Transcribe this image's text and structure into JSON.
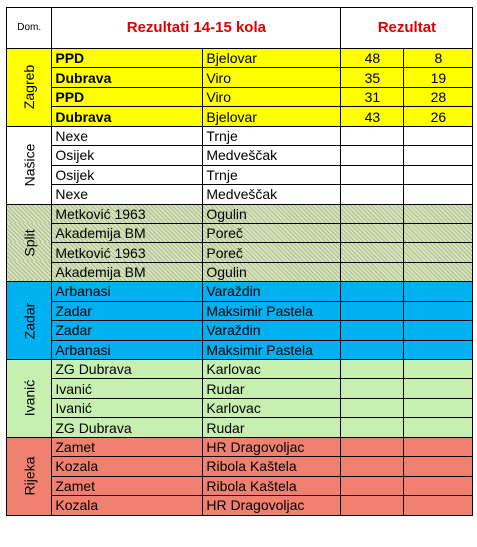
{
  "header": {
    "dom_label": "Dom.",
    "title": "Rezultati  14-15 kola",
    "result_label": "Rezultat"
  },
  "groups": [
    {
      "name": "Zagreb",
      "color": "#ffff00",
      "rows": [
        {
          "home": "PPD",
          "away": "Bjelovar",
          "score_home": "48",
          "score_away": "8"
        },
        {
          "home": "Dubrava",
          "away": "Viro",
          "score_home": "35",
          "score_away": "19"
        },
        {
          "home": "PPD",
          "away": "Viro",
          "score_home": "31",
          "score_away": "28"
        },
        {
          "home": "Dubrava",
          "away": "Bjelovar",
          "score_home": "43",
          "score_away": "26"
        }
      ]
    },
    {
      "name": "Našice",
      "color": "#ffffff",
      "rows": [
        {
          "home": "Nexe",
          "away": "Trnje",
          "score_home": "",
          "score_away": ""
        },
        {
          "home": "Osijek",
          "away": "Medveščak",
          "score_home": "",
          "score_away": ""
        },
        {
          "home": "Osijek",
          "away": "Trnje",
          "score_home": "",
          "score_away": ""
        },
        {
          "home": "Nexe",
          "away": "Medveščak",
          "score_home": "",
          "score_away": ""
        }
      ]
    },
    {
      "name": "Split",
      "color": "#d7e4bc",
      "rows": [
        {
          "home": "Metković 1963",
          "away": "Ogulin",
          "score_home": "",
          "score_away": ""
        },
        {
          "home": "Akademija BM",
          "away": "Poreč",
          "score_home": "",
          "score_away": ""
        },
        {
          "home": "Metković 1963",
          "away": "Poreč",
          "score_home": "",
          "score_away": ""
        },
        {
          "home": "Akademija BM",
          "away": "Ogulin",
          "score_home": "",
          "score_away": ""
        }
      ]
    },
    {
      "name": "Zadar",
      "color": "#00b0f0",
      "rows": [
        {
          "home": "Arbanasi",
          "away": "Varaždin",
          "score_home": "",
          "score_away": ""
        },
        {
          "home": "Zadar",
          "away": "Maksimir Pastela",
          "score_home": "",
          "score_away": ""
        },
        {
          "home": "Zadar",
          "away": "Varaždin",
          "score_home": "",
          "score_away": ""
        },
        {
          "home": "Arbanasi",
          "away": "Maksimir Pastela",
          "score_home": "",
          "score_away": ""
        }
      ]
    },
    {
      "name": "Ivanić",
      "color": "#c6efb0",
      "rows": [
        {
          "home": "ZG Dubrava",
          "away": "Karlovac",
          "score_home": "",
          "score_away": ""
        },
        {
          "home": "Ivanić",
          "away": "Rudar",
          "score_home": "",
          "score_away": ""
        },
        {
          "home": "Ivanić",
          "away": "Karlovac",
          "score_home": "",
          "score_away": ""
        },
        {
          "home": "ZG Dubrava",
          "away": "Rudar",
          "score_home": "",
          "score_away": ""
        }
      ]
    },
    {
      "name": "Rijeka",
      "color": "#f08070",
      "rows": [
        {
          "home": "Zamet",
          "away": "HR Dragovoljac",
          "score_home": "",
          "score_away": ""
        },
        {
          "home": "Kozala",
          "away": "Ribola  Kaštela",
          "score_home": "",
          "score_away": ""
        },
        {
          "home": "Zamet",
          "away": "Ribola  Kaštela",
          "score_home": "",
          "score_away": ""
        },
        {
          "home": "Kozala",
          "away": "HR Dragovoljac",
          "score_home": "",
          "score_away": ""
        }
      ]
    }
  ]
}
